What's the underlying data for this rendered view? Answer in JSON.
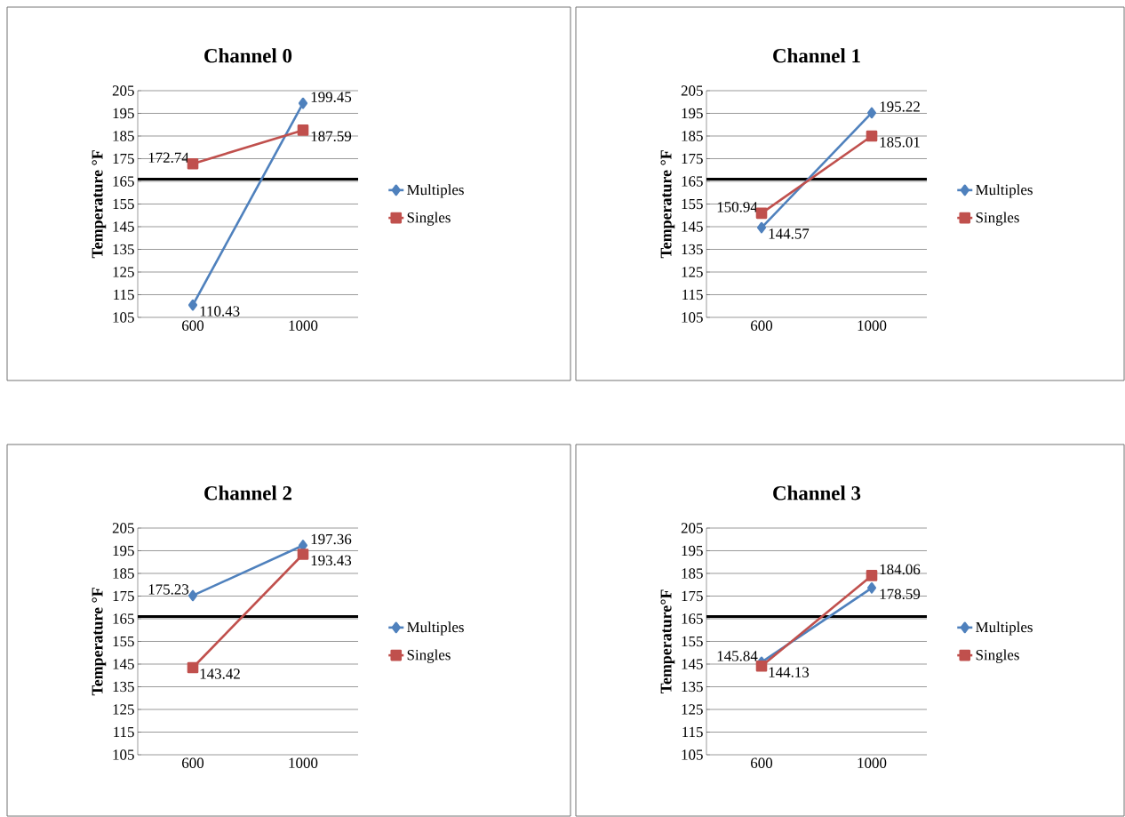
{
  "chart_data": [
    {
      "type": "line",
      "title": "Channel 0",
      "ylabel": "Temperature °F",
      "categories": [
        "600",
        "1000"
      ],
      "series": [
        {
          "name": "Multiples",
          "color": "#4f81bd",
          "marker": "diamond",
          "values": [
            110.43,
            199.45
          ]
        },
        {
          "name": "Singles",
          "color": "#c0504d",
          "marker": "square",
          "values": [
            172.74,
            187.59
          ]
        }
      ],
      "ylim": [
        105,
        205
      ],
      "yticks": [
        105,
        115,
        125,
        135,
        145,
        155,
        165,
        175,
        185,
        195,
        205
      ],
      "grid": "y",
      "legend": "right",
      "data_labels": true,
      "ref_lines": [
        {
          "axis": "y",
          "value": 166,
          "color": "#000000"
        }
      ]
    },
    {
      "type": "line",
      "title": "Channel 1",
      "ylabel": "Temperature °F",
      "categories": [
        "600",
        "1000"
      ],
      "series": [
        {
          "name": "Multiples",
          "color": "#4f81bd",
          "marker": "diamond",
          "values": [
            144.57,
            195.22
          ]
        },
        {
          "name": "Singles",
          "color": "#c0504d",
          "marker": "square",
          "values": [
            150.94,
            185.01
          ]
        }
      ],
      "ylim": [
        105,
        205
      ],
      "yticks": [
        105,
        115,
        125,
        135,
        145,
        155,
        165,
        175,
        185,
        195,
        205
      ],
      "grid": "y",
      "legend": "right",
      "data_labels": true,
      "ref_lines": [
        {
          "axis": "y",
          "value": 166,
          "color": "#000000"
        }
      ]
    },
    {
      "type": "line",
      "title": "Channel 2",
      "ylabel": "Temperature °F",
      "categories": [
        "600",
        "1000"
      ],
      "series": [
        {
          "name": "Multiples",
          "color": "#4f81bd",
          "marker": "diamond",
          "values": [
            175.23,
            197.36
          ]
        },
        {
          "name": "Singles",
          "color": "#c0504d",
          "marker": "square",
          "values": [
            143.42,
            193.43
          ]
        }
      ],
      "ylim": [
        105,
        205
      ],
      "yticks": [
        105,
        115,
        125,
        135,
        145,
        155,
        165,
        175,
        185,
        195,
        205
      ],
      "grid": "y",
      "legend": "right",
      "data_labels": true,
      "ref_lines": [
        {
          "axis": "y",
          "value": 166,
          "color": "#000000"
        }
      ]
    },
    {
      "type": "line",
      "title": "Channel 3",
      "ylabel": "Temperature°F",
      "categories": [
        "600",
        "1000"
      ],
      "series": [
        {
          "name": "Multiples",
          "color": "#4f81bd",
          "marker": "diamond",
          "values": [
            145.84,
            178.59
          ]
        },
        {
          "name": "Singles",
          "color": "#c0504d",
          "marker": "square",
          "values": [
            144.13,
            184.06
          ]
        }
      ],
      "ylim": [
        105,
        205
      ],
      "yticks": [
        105,
        115,
        125,
        135,
        145,
        155,
        165,
        175,
        185,
        195,
        205
      ],
      "grid": "y",
      "legend": "right",
      "data_labels": true,
      "ref_lines": [
        {
          "axis": "y",
          "value": 166,
          "color": "#000000"
        }
      ]
    }
  ]
}
